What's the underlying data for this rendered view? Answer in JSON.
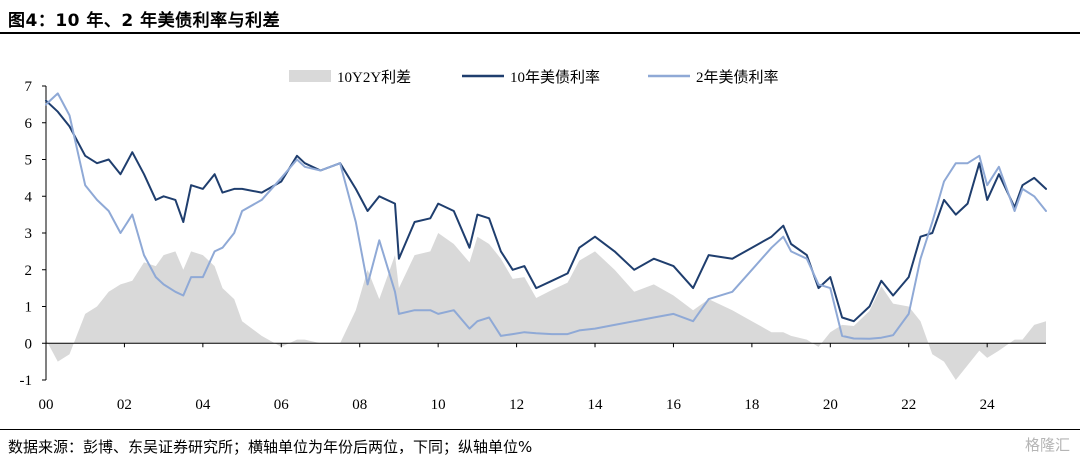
{
  "header": {
    "title": "图4：10 年、2 年美债利率与利差"
  },
  "footer": {
    "source": "数据来源：彭博、东吴证券研究所；横轴单位为年份后两位，下同；纵轴单位%",
    "watermark": "格隆汇"
  },
  "legend": [
    {
      "key": "spread",
      "label": "10Y2Y利差",
      "color": "#d9d9d9"
    },
    {
      "key": "y10",
      "label": "10年美债利率",
      "color": "#1f3e6e"
    },
    {
      "key": "y2",
      "label": "2年美债利率",
      "color": "#8fa9d6"
    }
  ],
  "chart_data": {
    "type": "line",
    "title": "10 年、2 年美债利率与利差",
    "xlabel": "",
    "ylabel": "",
    "xlim": [
      2000.0,
      2025.5
    ],
    "ylim": [
      -1,
      7
    ],
    "yticks": [
      -1,
      0,
      1,
      2,
      3,
      4,
      5,
      6,
      7
    ],
    "xticks": [
      {
        "value": 2000,
        "label": "00"
      },
      {
        "value": 2002,
        "label": "02"
      },
      {
        "value": 2004,
        "label": "04"
      },
      {
        "value": 2006,
        "label": "06"
      },
      {
        "value": 2008,
        "label": "08"
      },
      {
        "value": 2010,
        "label": "10"
      },
      {
        "value": 2012,
        "label": "12"
      },
      {
        "value": 2014,
        "label": "14"
      },
      {
        "value": 2016,
        "label": "16"
      },
      {
        "value": 2018,
        "label": "18"
      },
      {
        "value": 2020,
        "label": "20"
      },
      {
        "value": 2022,
        "label": "22"
      },
      {
        "value": 2024,
        "label": "24"
      }
    ],
    "legend_position": "top",
    "grid": false,
    "series": [
      {
        "name": "10年美债利率",
        "type": "line",
        "color": "#1f3e6e",
        "x": [
          2000.0,
          2000.3,
          2000.6,
          2001.0,
          2001.3,
          2001.6,
          2001.9,
          2002.2,
          2002.5,
          2002.8,
          2003.0,
          2003.3,
          2003.5,
          2003.7,
          2004.0,
          2004.3,
          2004.5,
          2004.8,
          2005.0,
          2005.5,
          2006.0,
          2006.4,
          2006.6,
          2007.0,
          2007.5,
          2007.9,
          2008.2,
          2008.5,
          2008.9,
          2009.0,
          2009.4,
          2009.8,
          2010.0,
          2010.4,
          2010.8,
          2011.0,
          2011.3,
          2011.6,
          2011.9,
          2012.2,
          2012.5,
          2012.9,
          2013.3,
          2013.6,
          2014.0,
          2014.5,
          2015.0,
          2015.5,
          2016.0,
          2016.5,
          2016.9,
          2017.5,
          2018.0,
          2018.5,
          2018.8,
          2019.0,
          2019.4,
          2019.7,
          2020.0,
          2020.3,
          2020.6,
          2021.0,
          2021.3,
          2021.6,
          2022.0,
          2022.3,
          2022.6,
          2022.9,
          2023.2,
          2023.5,
          2023.8,
          2024.0,
          2024.3,
          2024.7,
          2024.9,
          2025.2,
          2025.5
        ],
        "y": [
          6.6,
          6.3,
          5.9,
          5.1,
          4.9,
          5.0,
          4.6,
          5.2,
          4.6,
          3.9,
          4.0,
          3.9,
          3.3,
          4.3,
          4.2,
          4.6,
          4.1,
          4.2,
          4.2,
          4.1,
          4.4,
          5.1,
          4.9,
          4.7,
          4.9,
          4.2,
          3.6,
          4.0,
          3.8,
          2.3,
          3.3,
          3.4,
          3.8,
          3.6,
          2.6,
          3.5,
          3.4,
          2.5,
          2.0,
          2.1,
          1.5,
          1.7,
          1.9,
          2.6,
          2.9,
          2.5,
          2.0,
          2.3,
          2.1,
          1.5,
          2.4,
          2.3,
          2.6,
          2.9,
          3.2,
          2.7,
          2.4,
          1.5,
          1.8,
          0.7,
          0.6,
          1.0,
          1.7,
          1.3,
          1.8,
          2.9,
          3.0,
          3.9,
          3.5,
          3.8,
          4.9,
          3.9,
          4.6,
          3.7,
          4.3,
          4.5,
          4.2
        ]
      },
      {
        "name": "2年美债利率",
        "type": "line",
        "color": "#8fa9d6",
        "x": [
          2000.0,
          2000.3,
          2000.6,
          2001.0,
          2001.3,
          2001.6,
          2001.9,
          2002.2,
          2002.5,
          2002.8,
          2003.0,
          2003.3,
          2003.5,
          2003.7,
          2004.0,
          2004.3,
          2004.5,
          2004.8,
          2005.0,
          2005.5,
          2006.0,
          2006.4,
          2006.6,
          2007.0,
          2007.5,
          2007.9,
          2008.2,
          2008.5,
          2008.9,
          2009.0,
          2009.4,
          2009.8,
          2010.0,
          2010.4,
          2010.8,
          2011.0,
          2011.3,
          2011.6,
          2011.9,
          2012.2,
          2012.5,
          2012.9,
          2013.3,
          2013.6,
          2014.0,
          2014.5,
          2015.0,
          2015.5,
          2016.0,
          2016.5,
          2016.9,
          2017.5,
          2018.0,
          2018.5,
          2018.8,
          2019.0,
          2019.4,
          2019.7,
          2020.0,
          2020.3,
          2020.6,
          2021.0,
          2021.3,
          2021.6,
          2022.0,
          2022.3,
          2022.6,
          2022.9,
          2023.2,
          2023.5,
          2023.8,
          2024.0,
          2024.3,
          2024.7,
          2024.9,
          2025.2,
          2025.5
        ],
        "y": [
          6.5,
          6.8,
          6.2,
          4.3,
          3.9,
          3.6,
          3.0,
          3.5,
          2.4,
          1.8,
          1.6,
          1.4,
          1.3,
          1.8,
          1.8,
          2.5,
          2.6,
          3.0,
          3.6,
          3.9,
          4.5,
          5.0,
          4.8,
          4.7,
          4.9,
          3.3,
          1.6,
          2.8,
          1.4,
          0.8,
          0.9,
          0.9,
          0.8,
          0.9,
          0.4,
          0.6,
          0.7,
          0.2,
          0.25,
          0.3,
          0.27,
          0.25,
          0.25,
          0.35,
          0.4,
          0.5,
          0.6,
          0.7,
          0.8,
          0.6,
          1.2,
          1.4,
          2.0,
          2.6,
          2.9,
          2.5,
          2.3,
          1.6,
          1.5,
          0.2,
          0.13,
          0.12,
          0.15,
          0.22,
          0.8,
          2.3,
          3.3,
          4.4,
          4.9,
          4.9,
          5.1,
          4.3,
          4.8,
          3.6,
          4.2,
          4.0,
          3.6
        ]
      },
      {
        "name": "10Y2Y利差",
        "type": "area",
        "color": "#d9d9d9",
        "x": [
          2000.0,
          2000.3,
          2000.6,
          2001.0,
          2001.3,
          2001.6,
          2001.9,
          2002.2,
          2002.5,
          2002.8,
          2003.0,
          2003.3,
          2003.5,
          2003.7,
          2004.0,
          2004.3,
          2004.5,
          2004.8,
          2005.0,
          2005.5,
          2006.0,
          2006.4,
          2006.6,
          2007.0,
          2007.5,
          2007.9,
          2008.2,
          2008.5,
          2008.9,
          2009.0,
          2009.4,
          2009.8,
          2010.0,
          2010.4,
          2010.8,
          2011.0,
          2011.3,
          2011.6,
          2011.9,
          2012.2,
          2012.5,
          2012.9,
          2013.3,
          2013.6,
          2014.0,
          2014.5,
          2015.0,
          2015.5,
          2016.0,
          2016.5,
          2016.9,
          2017.5,
          2018.0,
          2018.5,
          2018.8,
          2019.0,
          2019.4,
          2019.7,
          2020.0,
          2020.3,
          2020.6,
          2021.0,
          2021.3,
          2021.6,
          2022.0,
          2022.3,
          2022.6,
          2022.9,
          2023.2,
          2023.5,
          2023.8,
          2024.0,
          2024.3,
          2024.7,
          2024.9,
          2025.2,
          2025.5
        ],
        "y": [
          0.1,
          -0.5,
          -0.3,
          0.8,
          1.0,
          1.4,
          1.6,
          1.7,
          2.2,
          2.1,
          2.4,
          2.5,
          2.0,
          2.5,
          2.4,
          2.1,
          1.5,
          1.2,
          0.6,
          0.2,
          -0.1,
          0.1,
          0.1,
          0.0,
          0.0,
          0.9,
          2.0,
          1.2,
          2.4,
          1.5,
          2.4,
          2.5,
          3.0,
          2.7,
          2.2,
          2.9,
          2.7,
          2.3,
          1.75,
          1.8,
          1.23,
          1.45,
          1.65,
          2.25,
          2.5,
          2.0,
          1.4,
          1.6,
          1.3,
          0.9,
          1.2,
          0.9,
          0.6,
          0.3,
          0.3,
          0.2,
          0.1,
          -0.1,
          0.3,
          0.5,
          0.47,
          0.88,
          1.55,
          1.08,
          1.0,
          0.6,
          -0.3,
          -0.5,
          -1.0,
          -0.6,
          -0.2,
          -0.4,
          -0.2,
          0.1,
          0.1,
          0.5,
          0.6
        ]
      }
    ]
  }
}
